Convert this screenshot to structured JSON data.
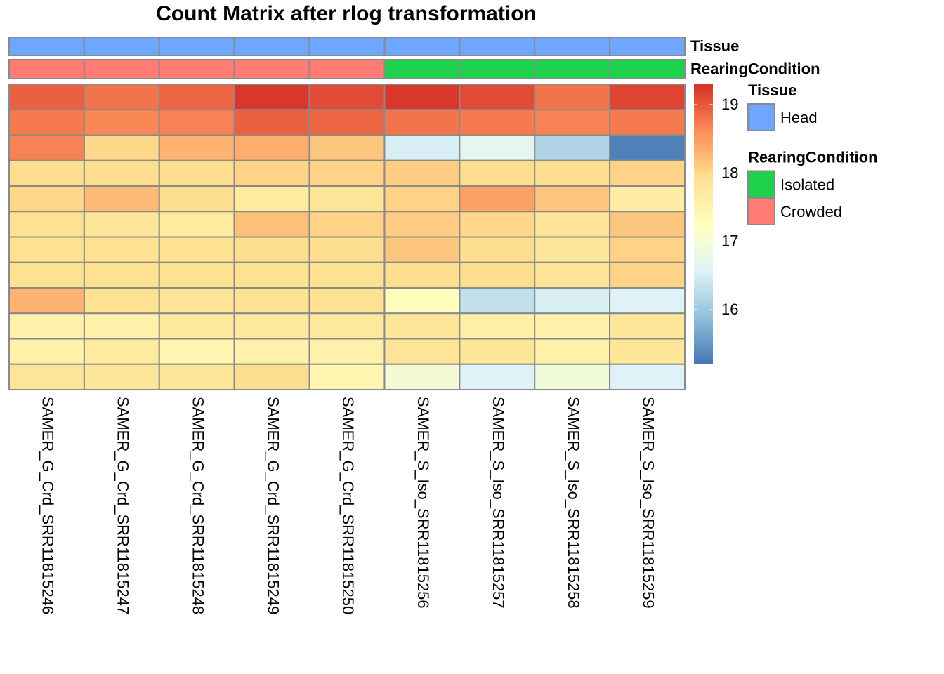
{
  "chart_data": {
    "type": "heatmap",
    "title": "Count Matrix after rlog transformation",
    "columns": [
      "SAMER_G_Crd_SRR11815246",
      "SAMER_G_Crd_SRR11815247",
      "SAMER_G_Crd_SRR11815248",
      "SAMER_G_Crd_SRR11815249",
      "SAMER_G_Crd_SRR11815250",
      "SAMER_S_Iso_SRR11815256",
      "SAMER_S_Iso_SRR11815257",
      "SAMER_S_Iso_SRR11815258",
      "SAMER_S_Iso_SRR11815259"
    ],
    "values": [
      [
        18.95,
        18.8,
        18.9,
        19.25,
        19.1,
        19.25,
        19.1,
        18.8,
        19.15
      ],
      [
        18.75,
        18.65,
        18.7,
        18.95,
        18.9,
        18.8,
        18.75,
        18.7,
        18.75
      ],
      [
        18.7,
        18.0,
        18.3,
        18.35,
        18.15,
        16.5,
        16.7,
        16.15,
        15.3
      ],
      [
        17.95,
        17.95,
        17.95,
        18.05,
        18.05,
        18.1,
        17.95,
        17.95,
        18.05
      ],
      [
        18.0,
        18.25,
        17.95,
        17.7,
        17.85,
        18.05,
        18.45,
        18.15,
        17.65
      ],
      [
        17.9,
        17.8,
        17.7,
        18.2,
        18.05,
        18.1,
        18.0,
        17.85,
        18.15
      ],
      [
        17.9,
        17.9,
        17.9,
        17.95,
        17.95,
        18.15,
        17.95,
        17.8,
        18.05
      ],
      [
        17.9,
        17.9,
        17.9,
        17.9,
        17.9,
        17.95,
        17.95,
        17.85,
        18.05
      ],
      [
        18.3,
        17.9,
        17.85,
        17.9,
        17.9,
        17.3,
        16.3,
        16.5,
        16.55
      ],
      [
        17.55,
        17.55,
        17.75,
        17.75,
        17.75,
        17.8,
        17.6,
        17.55,
        17.8
      ],
      [
        17.55,
        17.7,
        17.45,
        17.55,
        17.55,
        17.85,
        17.8,
        17.55,
        17.8
      ],
      [
        17.85,
        17.8,
        17.8,
        17.95,
        17.45,
        17.0,
        16.55,
        16.95,
        16.55
      ]
    ],
    "colorscale": {
      "colors": [
        "#4575B4",
        "#91BFDB",
        "#E0F3F8",
        "#FFFFBF",
        "#FEE090",
        "#FC8D59",
        "#D73027"
      ],
      "lim": [
        15.2,
        19.3
      ],
      "ticks": [
        16,
        17,
        18,
        19
      ]
    },
    "annotations": [
      {
        "name": "Tissue",
        "values": [
          "Head",
          "Head",
          "Head",
          "Head",
          "Head",
          "Head",
          "Head",
          "Head",
          "Head"
        ],
        "legend": [
          {
            "label": "Head",
            "color": "#6FA6FF"
          }
        ]
      },
      {
        "name": "RearingCondition",
        "values": [
          "Crowded",
          "Crowded",
          "Crowded",
          "Crowded",
          "Crowded",
          "Isolated",
          "Isolated",
          "Isolated",
          "Isolated"
        ],
        "legend": [
          {
            "label": "Isolated",
            "color": "#1DD14B"
          },
          {
            "label": "Crowded",
            "color": "#FF7B74"
          }
        ]
      }
    ]
  }
}
